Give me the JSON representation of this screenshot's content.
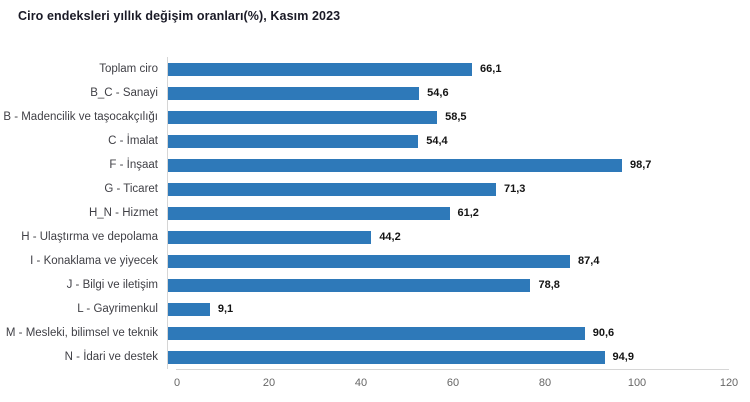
{
  "title": "Ciro endeksleri yıllık değişim oranları(%), Kasım 2023",
  "colors": {
    "bar": "#2E79B9",
    "axis_line": "#d6d6d6",
    "title_text": "#1a1a26",
    "category_text": "#404046",
    "value_text": "#141414",
    "tick_text": "#666666",
    "background": "#ffffff"
  },
  "chart_data": {
    "type": "bar",
    "orientation": "horizontal",
    "title": "Ciro endeksleri yıllık değişim oranları(%), Kasım 2023",
    "categories": [
      "Toplam ciro",
      "B_C - Sanayi",
      "B - Madencilik ve taşocakçılığı",
      "C - İmalat",
      "F - İnşaat",
      "G - Ticaret",
      "H_N - Hizmet",
      "H - Ulaştırma ve depolama",
      "I - Konaklama ve yiyecek",
      "J - Bilgi ve iletişim",
      "L - Gayrimenkul",
      "M - Mesleki, bilimsel ve teknik",
      "N - İdari ve destek"
    ],
    "values": [
      66.1,
      54.6,
      58.5,
      54.4,
      98.7,
      71.3,
      61.2,
      44.2,
      87.4,
      78.8,
      9.1,
      90.6,
      94.9
    ],
    "value_labels": [
      "66,1",
      "54,6",
      "58,5",
      "54,4",
      "98,7",
      "71,3",
      "61,2",
      "44,2",
      "87,4",
      "78,8",
      "9,1",
      "90,6",
      "94,9"
    ],
    "xlabel": "",
    "ylabel": "",
    "xlim": [
      0,
      120
    ],
    "xticks": [
      0,
      20,
      40,
      60,
      80,
      100,
      120
    ],
    "grid": false,
    "legend": "none"
  }
}
